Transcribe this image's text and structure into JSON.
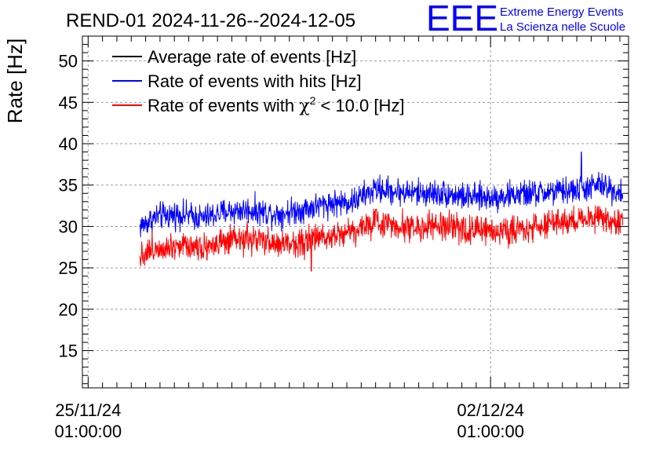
{
  "chart_data": {
    "type": "line",
    "title": "REND-01 2024-11-26--2024-12-05",
    "ylabel": "Rate [Hz]",
    "xlabel": "",
    "ylim": [
      10.5,
      53
    ],
    "x_range_days": [
      -0.1,
      9.4
    ],
    "grid": true,
    "y_ticks": [
      15,
      20,
      25,
      30,
      35,
      40,
      45,
      50
    ],
    "x_ticks": [
      {
        "day": 0,
        "date": "25/11/24",
        "time": "01:00:00"
      },
      {
        "day": 7,
        "date": "02/12/24",
        "time": "01:00:00"
      }
    ],
    "legend": {
      "position": "top-left",
      "entries": [
        {
          "label_main": "Average rate of events [Hz]",
          "color": "#000000"
        },
        {
          "label_main": "Rate of events with hits [Hz]",
          "color": "#0000ff"
        },
        {
          "label_pre": "Rate of events with ",
          "label_symbol": "χ",
          "label_sup": "2",
          "label_post": " < 10.0 [Hz]",
          "color": "#ff0000"
        }
      ]
    },
    "series": [
      {
        "name": "Rate of events with hits [Hz]",
        "color": "#0000ff",
        "x": [
          0.9,
          1.2,
          1.6,
          2.0,
          2.4,
          2.8,
          3.3,
          3.8,
          4.2,
          4.6,
          5.0,
          5.4,
          5.8,
          6.2,
          6.6,
          7.0,
          7.4,
          7.8,
          8.2,
          8.6,
          8.9,
          9.3
        ],
        "values": [
          30.0,
          31.2,
          31.5,
          31.0,
          31.8,
          32.0,
          31.5,
          32.2,
          32.8,
          33.0,
          34.5,
          34.2,
          34.0,
          34.0,
          33.5,
          33.5,
          33.8,
          34.0,
          34.2,
          34.5,
          35.0,
          34.0
        ],
        "noise": 1.6,
        "spikes": [
          {
            "x": 8.58,
            "value": 39.0
          }
        ]
      },
      {
        "name": "Rate of events with χ2 < 10.0 [Hz]",
        "color": "#ff0000",
        "x": [
          0.9,
          1.2,
          1.6,
          2.0,
          2.4,
          2.8,
          3.3,
          3.8,
          4.2,
          4.6,
          5.0,
          5.4,
          5.8,
          6.2,
          6.6,
          7.0,
          7.4,
          7.8,
          8.2,
          8.6,
          8.9,
          9.3
        ],
        "values": [
          26.5,
          27.5,
          27.8,
          27.6,
          28.0,
          28.5,
          27.8,
          28.2,
          29.0,
          29.5,
          30.5,
          30.2,
          29.8,
          30.0,
          29.5,
          29.5,
          29.6,
          30.0,
          30.5,
          30.8,
          31.2,
          30.2
        ],
        "noise": 1.7,
        "spikes": [
          {
            "x": 3.88,
            "value": 24.6
          }
        ]
      }
    ],
    "logo": {
      "text": "EEE",
      "line1": "Extreme Energy Events",
      "line2": "La Scienza nelle Scuole",
      "color": "#0000ff"
    }
  }
}
